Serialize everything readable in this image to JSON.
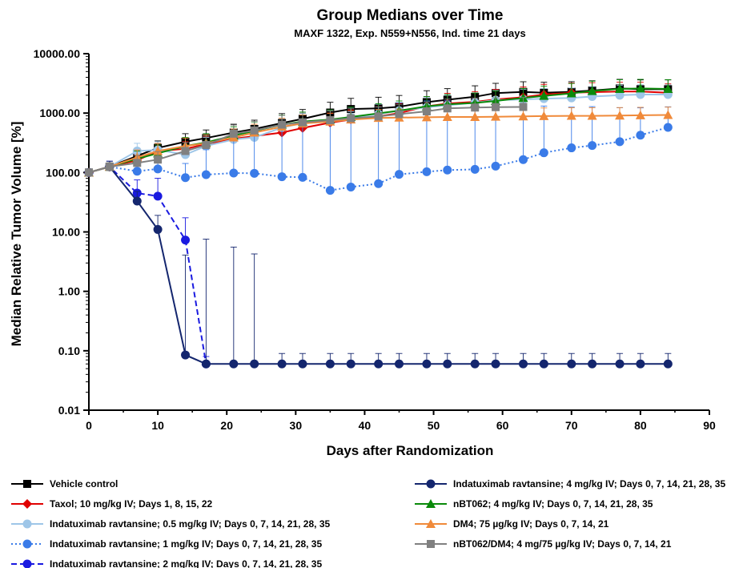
{
  "chart_data": {
    "type": "line",
    "title": "Group Medians over Time",
    "subtitle": "MAXF 1322, Exp. N559+N556, Ind. time 21 days",
    "xlabel": "Days after Randomization",
    "ylabel": "Median Relative Tumor Volume [%]",
    "xlim": [
      0,
      90
    ],
    "ylim": [
      0.01,
      10000
    ],
    "yscale": "log",
    "xticks": [
      0,
      10,
      20,
      30,
      40,
      50,
      60,
      70,
      80,
      90
    ],
    "xtick_labels": [
      "0",
      "10",
      "20",
      "30",
      "40",
      "50",
      "60",
      "70",
      "80",
      "90"
    ],
    "yticks": [
      0.01,
      0.1,
      1,
      10,
      100,
      1000,
      10000
    ],
    "ytick_labels": [
      "0.01",
      "0.10",
      "1.00",
      "10.00",
      "100.00",
      "1000.00",
      "10000.00"
    ],
    "grid": false,
    "legend_position": "bottom",
    "series": [
      {
        "name": "Vehicle control",
        "color": "#000000",
        "marker": "square",
        "dash": "solid",
        "x": [
          0,
          3,
          7,
          10,
          14,
          17,
          21,
          24,
          28,
          31,
          35,
          38,
          42,
          45,
          49,
          52,
          56,
          59,
          63,
          66,
          70,
          73,
          77,
          80,
          84
        ],
        "y": [
          100,
          125,
          190,
          260,
          330,
          380,
          470,
          540,
          680,
          800,
          1020,
          1170,
          1200,
          1280,
          1530,
          1680,
          1880,
          2170,
          2270,
          2200,
          2280,
          2400,
          2600,
          2520,
          2520
        ],
        "err": [
          10,
          20,
          60,
          80,
          120,
          140,
          180,
          220,
          300,
          350,
          500,
          600,
          650,
          700,
          850,
          900,
          1000,
          1000,
          1100,
          1100,
          1100,
          1100,
          1100,
          1100,
          1100
        ]
      },
      {
        "name": "Taxol; 10 mg/kg IV; Days 1, 8, 15, 22",
        "color": "#e00000",
        "marker": "diamond",
        "dash": "solid",
        "x": [
          0,
          3,
          7,
          10,
          14,
          17,
          21,
          24,
          28,
          31,
          35,
          38,
          42,
          45,
          49,
          52,
          56,
          59,
          63,
          66,
          70,
          73,
          77,
          80,
          84
        ],
        "y": [
          100,
          125,
          160,
          230,
          250,
          300,
          370,
          410,
          470,
          560,
          690,
          780,
          880,
          1000,
          1300,
          1450,
          1550,
          1700,
          1850,
          2050,
          2200,
          2250,
          2300,
          2300,
          2200
        ],
        "err": [
          10,
          15,
          40,
          60,
          80,
          100,
          130,
          150,
          180,
          230,
          300,
          350,
          400,
          450,
          600,
          700,
          750,
          800,
          900,
          1000,
          1000,
          1000,
          1000,
          1000,
          900
        ]
      },
      {
        "name": "Indatuximab ravtansine; 0.5 mg/kg IV; Days 0, 7, 14, 21, 28, 35",
        "color": "#9ec6e8",
        "marker": "circle",
        "dash": "solid",
        "x": [
          0,
          3,
          7,
          10,
          14,
          17,
          21,
          24,
          28,
          31,
          35,
          38,
          42,
          45,
          49,
          52,
          56,
          59,
          63,
          66,
          70,
          73,
          77,
          80,
          84
        ],
        "y": [
          100,
          125,
          230,
          240,
          200,
          280,
          360,
          390,
          570,
          680,
          750,
          850,
          960,
          1100,
          1250,
          1350,
          1500,
          1650,
          1700,
          1750,
          1800,
          1900,
          2000,
          2050,
          2050
        ],
        "err": [
          10,
          20,
          80,
          90,
          80,
          110,
          140,
          160,
          250,
          300,
          350,
          400,
          450,
          500,
          600,
          650,
          700,
          750,
          800,
          850,
          850,
          900,
          950,
          950,
          950
        ]
      },
      {
        "name": "Indatuximab ravtansine; 1 mg/kg IV; Days 0, 7, 14, 21, 28, 35",
        "color": "#3a7be8",
        "marker": "circle",
        "dash": "dotted",
        "x": [
          0,
          3,
          7,
          10,
          14,
          17,
          21,
          24,
          28,
          31,
          35,
          38,
          42,
          45,
          49,
          52,
          56,
          59,
          63,
          66,
          70,
          73,
          77,
          80,
          84
        ],
        "y": [
          100,
          125,
          105,
          115,
          82,
          92,
          98,
          97,
          85,
          83,
          50,
          57,
          65,
          93,
          103,
          110,
          113,
          128,
          165,
          215,
          260,
          285,
          330,
          425,
          575
        ],
        "err": [
          10,
          20,
          60,
          80,
          60,
          150,
          280,
          400,
          550,
          700,
          800,
          1000,
          1200,
          1400,
          1500,
          1500,
          1400,
          1300,
          1200,
          1100,
          1000,
          1000,
          900,
          800,
          700
        ]
      },
      {
        "name": "Indatuximab ravtansine; 2 mg/kg IV; Days 0, 7, 14, 21, 28, 35",
        "color": "#1a1ae0",
        "marker": "circle",
        "dash": "dashed",
        "x": [
          0,
          3,
          7,
          10,
          14,
          17
        ],
        "y": [
          100,
          125,
          45,
          40,
          7.3,
          0.06
        ],
        "err": [
          10,
          30,
          30,
          40,
          10,
          0.02
        ]
      },
      {
        "name": "Indatuximab ravtansine; 4 mg/kg IV; Days 0, 7, 14, 21, 28, 35",
        "color": "#14266e",
        "marker": "circle",
        "dash": "solid",
        "x": [
          0,
          3,
          7,
          10,
          14,
          17,
          21,
          24,
          28,
          31,
          35,
          38,
          42,
          45,
          49,
          52,
          56,
          59,
          63,
          66,
          70,
          73,
          77,
          80,
          84
        ],
        "y": [
          100,
          125,
          33,
          11,
          0.085,
          0.06,
          0.06,
          0.06,
          0.06,
          0.06,
          0.06,
          0.06,
          0.06,
          0.06,
          0.06,
          0.06,
          0.06,
          0.06,
          0.06,
          0.06,
          0.06,
          0.06,
          0.06,
          0.06,
          0.06
        ],
        "err": [
          10,
          30,
          15,
          8,
          4,
          7.5,
          5.5,
          4.2,
          0.03,
          0.03,
          0.03,
          0.03,
          0.03,
          0.03,
          0.03,
          0.03,
          0.03,
          0.03,
          0.03,
          0.03,
          0.03,
          0.03,
          0.03,
          0.03,
          0.03
        ]
      },
      {
        "name": "nBT062; 4 mg/kg IV; Days 0, 7, 14, 21, 28, 35",
        "color": "#0a8a0a",
        "marker": "triangle",
        "dash": "solid",
        "x": [
          0,
          3,
          7,
          10,
          14,
          17,
          21,
          24,
          28,
          31,
          35,
          38,
          42,
          45,
          49,
          52,
          56,
          59,
          63,
          66,
          70,
          73,
          77,
          80,
          84
        ],
        "y": [
          100,
          125,
          170,
          210,
          280,
          320,
          420,
          500,
          640,
          720,
          780,
          860,
          990,
          1100,
          1300,
          1400,
          1480,
          1600,
          1800,
          1950,
          2150,
          2350,
          2550,
          2600,
          2550
        ],
        "err": [
          10,
          20,
          60,
          80,
          110,
          130,
          170,
          210,
          280,
          320,
          350,
          400,
          450,
          500,
          600,
          650,
          700,
          750,
          800,
          900,
          1000,
          1100,
          1100,
          1100,
          1100
        ]
      },
      {
        "name": "DM4; 75 µg/kg IV; Days 0, 7, 14, 21",
        "color": "#f08a3a",
        "marker": "triangle",
        "dash": "solid",
        "x": [
          0,
          3,
          7,
          10,
          14,
          17,
          21,
          24,
          28,
          31,
          35,
          38,
          42,
          45,
          49,
          52,
          56,
          59,
          63,
          66,
          70,
          73,
          77,
          80,
          84
        ],
        "y": [
          100,
          125,
          180,
          230,
          280,
          310,
          390,
          470,
          590,
          670,
          720,
          780,
          830,
          840,
          850,
          860,
          860,
          870,
          880,
          890,
          900,
          900,
          910,
          920,
          930
        ],
        "err": [
          10,
          20,
          60,
          80,
          100,
          120,
          150,
          180,
          230,
          260,
          280,
          300,
          320,
          330,
          330,
          330,
          330,
          330,
          330,
          330,
          330,
          330,
          330,
          330,
          330
        ]
      },
      {
        "name": "nBT062/DM4; 4 mg/75 µg/kg IV; Days 0, 7, 14, 21",
        "color": "#808080",
        "marker": "square",
        "dash": "solid",
        "x": [
          0,
          3,
          7,
          10,
          14,
          17,
          21,
          24,
          28,
          31,
          35,
          38,
          42,
          45,
          49,
          52,
          56,
          59,
          63
        ],
        "y": [
          100,
          125,
          145,
          165,
          230,
          290,
          450,
          510,
          640,
          700,
          760,
          820,
          880,
          960,
          1070,
          1200,
          1240,
          1260,
          1270
        ],
        "err": [
          10,
          20,
          50,
          60,
          90,
          120,
          180,
          210,
          270,
          300,
          330,
          360,
          390,
          420,
          470,
          520,
          540,
          550,
          560
        ]
      }
    ]
  }
}
